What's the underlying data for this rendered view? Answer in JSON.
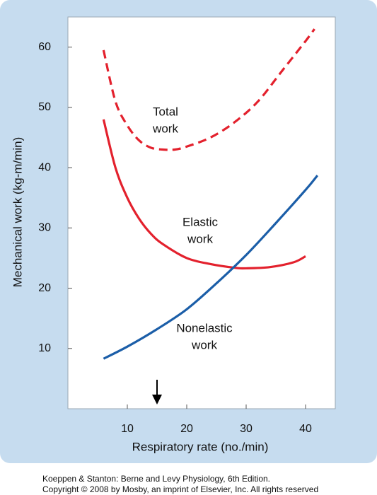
{
  "chart_data": {
    "type": "line",
    "xlabel": "Respiratory rate (no./min)",
    "ylabel": "Mechanical work (kg-m/min)",
    "xlim": [
      0,
      45
    ],
    "xticks": [
      10,
      20,
      30,
      40
    ],
    "ylim": [
      0,
      65
    ],
    "yticks": [
      10,
      20,
      30,
      40,
      50,
      60
    ],
    "series": [
      {
        "color": "#e3212d",
        "style": "dashed",
        "x": [
          6,
          8,
          10,
          12,
          14,
          16,
          18,
          20,
          24,
          28,
          32,
          36,
          40,
          41.5
        ],
        "values": [
          59.5,
          51,
          47,
          44.5,
          43.3,
          43,
          43,
          43.5,
          45,
          47.5,
          51,
          56,
          61,
          63
        ]
      },
      {
        "color": "#e3212d",
        "style": "solid",
        "x": [
          6,
          8,
          10,
          12,
          14,
          16,
          20,
          24,
          28,
          30,
          34,
          38,
          40
        ],
        "values": [
          48,
          40,
          35,
          31.5,
          29,
          27.3,
          25,
          24,
          23.4,
          23.3,
          23.5,
          24.3,
          25.3
        ]
      },
      {
        "color": "#1b5ea8",
        "style": "solid",
        "x": [
          6,
          10,
          15,
          20,
          25,
          30,
          35,
          40,
          42
        ],
        "values": [
          8.3,
          10.3,
          13.2,
          16.5,
          20.8,
          25.5,
          30.8,
          36.3,
          38.7
        ]
      }
    ],
    "annotations": [
      [
        "Total",
        "work"
      ],
      [
        "Elastic",
        "work"
      ],
      [
        "Nonelastic",
        "work"
      ]
    ],
    "footer": [
      "Koeppen & Stanton: Berne and Levy Physiology, 6th Edition.",
      "Copyright © 2008 by Mosby, an imprint of Elsevier, Inc. All rights reserved"
    ]
  }
}
